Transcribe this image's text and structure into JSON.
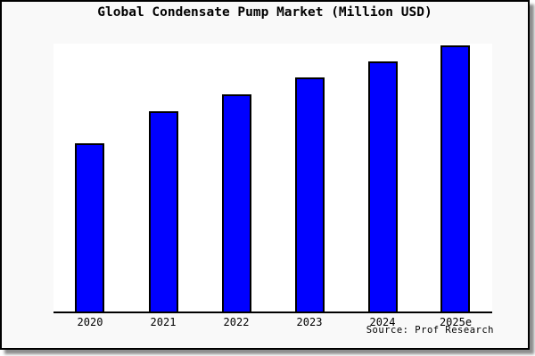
{
  "figure": {
    "title": "Global Condensate Pump Market (Million USD)",
    "source_note": "Source: Prof Research"
  },
  "chart_data": {
    "type": "bar",
    "title": "Global Condensate Pump Market (Million USD)",
    "categories": [
      "2020",
      "2021",
      "2022",
      "2023",
      "2024",
      "2025e"
    ],
    "values": [
      63,
      75,
      81.5,
      87.7,
      93.8,
      100
    ],
    "values_note": "relative scale estimated from bar heights; chart displays no y-axis tick labels",
    "xlabel": "",
    "ylabel": "",
    "ylim": [
      0,
      100.5
    ],
    "grid": false,
    "legend": false,
    "source": "Source: Prof Research",
    "colors": {
      "bar_fill": "#0000ff",
      "bar_border": "#000000",
      "figure_bg": "#f9f9f9",
      "plot_bg": "#ffffff",
      "axis": "#000000",
      "text": "#000000"
    }
  }
}
